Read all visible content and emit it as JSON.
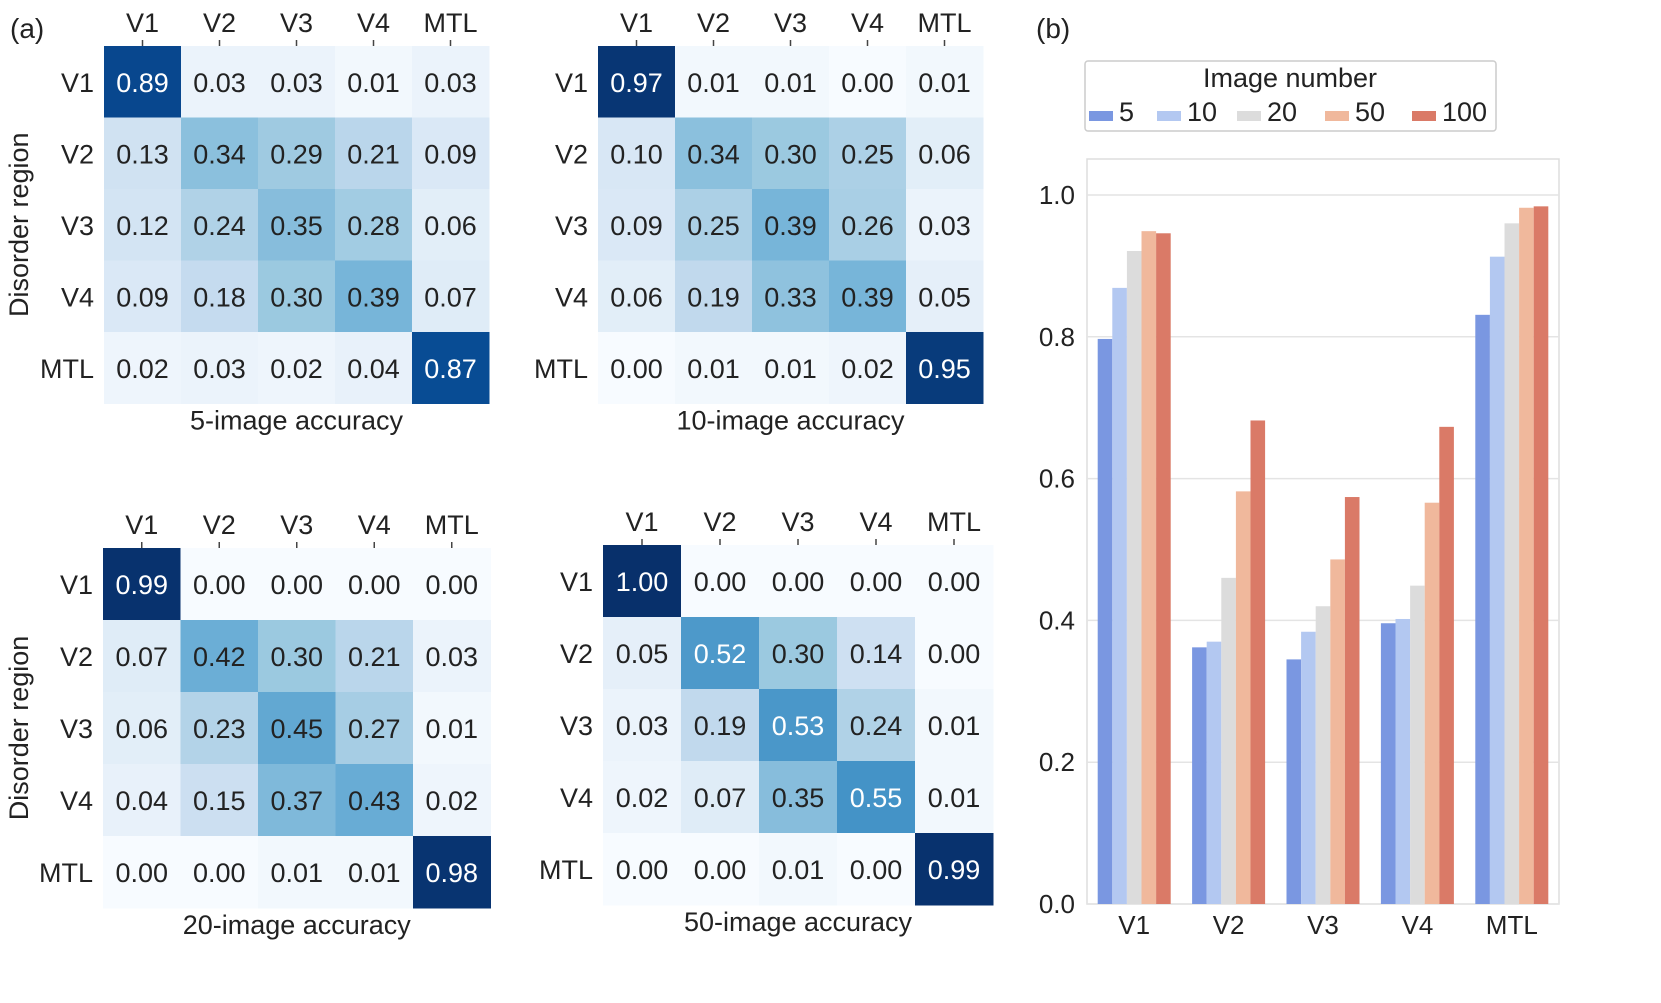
{
  "panel_labels": {
    "a": "(a)",
    "b": "(b)"
  },
  "chart_data": [
    {
      "type": "heatmap",
      "id": "hm5",
      "title": "5-image accuracy",
      "ylabel": "Disorder region",
      "columns": [
        "V1",
        "V2",
        "V3",
        "V4",
        "MTL"
      ],
      "rows": [
        "V1",
        "V2",
        "V3",
        "V4",
        "MTL"
      ],
      "values": [
        [
          0.89,
          0.03,
          0.03,
          0.01,
          0.03
        ],
        [
          0.13,
          0.34,
          0.29,
          0.21,
          0.09
        ],
        [
          0.12,
          0.24,
          0.35,
          0.28,
          0.06
        ],
        [
          0.09,
          0.18,
          0.3,
          0.39,
          0.07
        ],
        [
          0.02,
          0.03,
          0.02,
          0.04,
          0.87
        ]
      ],
      "value_range": [
        0,
        1
      ],
      "colormap": "Blues"
    },
    {
      "type": "heatmap",
      "id": "hm10",
      "title": "10-image accuracy",
      "ylabel": "",
      "columns": [
        "V1",
        "V2",
        "V3",
        "V4",
        "MTL"
      ],
      "rows": [
        "V1",
        "V2",
        "V3",
        "V4",
        "MTL"
      ],
      "values": [
        [
          0.97,
          0.01,
          0.01,
          0.0,
          0.01
        ],
        [
          0.1,
          0.34,
          0.3,
          0.25,
          0.06
        ],
        [
          0.09,
          0.25,
          0.39,
          0.26,
          0.03
        ],
        [
          0.06,
          0.19,
          0.33,
          0.39,
          0.05
        ],
        [
          0.0,
          0.01,
          0.01,
          0.02,
          0.95
        ]
      ],
      "value_range": [
        0,
        1
      ],
      "colormap": "Blues"
    },
    {
      "type": "heatmap",
      "id": "hm20",
      "title": "20-image accuracy",
      "ylabel": "Disorder region",
      "columns": [
        "V1",
        "V2",
        "V3",
        "V4",
        "MTL"
      ],
      "rows": [
        "V1",
        "V2",
        "V3",
        "V4",
        "MTL"
      ],
      "values": [
        [
          0.99,
          0.0,
          0.0,
          0.0,
          0.0
        ],
        [
          0.07,
          0.42,
          0.3,
          0.21,
          0.03
        ],
        [
          0.06,
          0.23,
          0.45,
          0.27,
          0.01
        ],
        [
          0.04,
          0.15,
          0.37,
          0.43,
          0.02
        ],
        [
          0.0,
          0.0,
          0.01,
          0.01,
          0.98
        ]
      ],
      "value_range": [
        0,
        1
      ],
      "colormap": "Blues"
    },
    {
      "type": "heatmap",
      "id": "hm50",
      "title": "50-image accuracy",
      "ylabel": "",
      "columns": [
        "V1",
        "V2",
        "V3",
        "V4",
        "MTL"
      ],
      "rows": [
        "V1",
        "V2",
        "V3",
        "V4",
        "MTL"
      ],
      "values": [
        [
          1.0,
          0.0,
          0.0,
          0.0,
          0.0
        ],
        [
          0.05,
          0.52,
          0.3,
          0.14,
          0.0
        ],
        [
          0.03,
          0.19,
          0.53,
          0.24,
          0.01
        ],
        [
          0.02,
          0.07,
          0.35,
          0.55,
          0.01
        ],
        [
          0.0,
          0.0,
          0.01,
          0.0,
          0.99
        ]
      ],
      "value_range": [
        0,
        1
      ],
      "colormap": "Blues"
    },
    {
      "type": "bar",
      "id": "bars",
      "legend_title": "Image number",
      "legend_position": "top",
      "categories": [
        "V1",
        "V2",
        "V3",
        "V4",
        "MTL"
      ],
      "series": [
        {
          "name": "5",
          "color": "#7a97e1",
          "values": [
            0.797,
            0.362,
            0.345,
            0.396,
            0.831
          ]
        },
        {
          "name": "10",
          "color": "#b3c8f1",
          "values": [
            0.869,
            0.37,
            0.384,
            0.402,
            0.913
          ]
        },
        {
          "name": "20",
          "color": "#dcdcdc",
          "values": [
            0.921,
            0.46,
            0.42,
            0.449,
            0.96
          ]
        },
        {
          "name": "50",
          "color": "#f0b89c",
          "values": [
            0.949,
            0.582,
            0.486,
            0.566,
            0.982
          ]
        },
        {
          "name": "100",
          "color": "#da7a67",
          "values": [
            0.946,
            0.682,
            0.574,
            0.673,
            0.984
          ]
        }
      ],
      "ylim": [
        0,
        1.05
      ],
      "yticks": [
        "0.0",
        "0.2",
        "0.4",
        "0.6",
        "0.8",
        "1.0"
      ],
      "grid": true
    }
  ]
}
